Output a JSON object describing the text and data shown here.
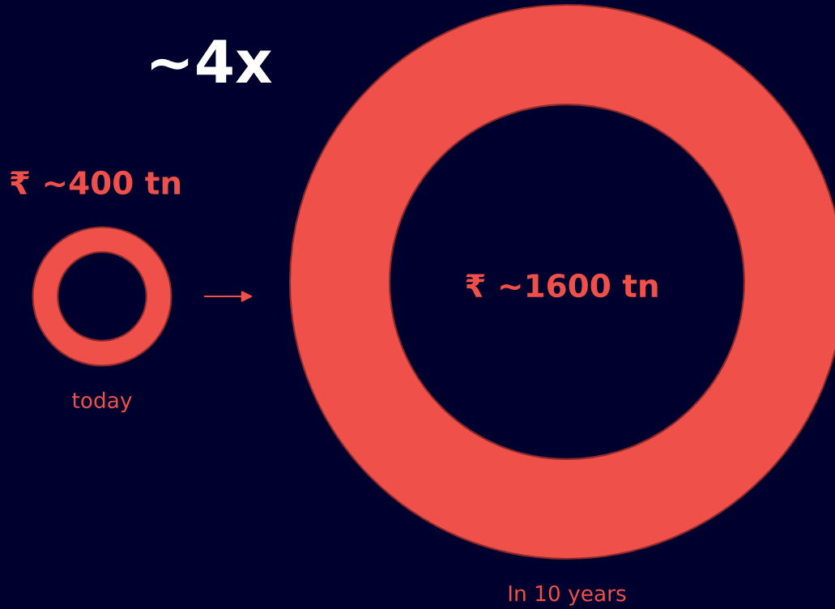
{
  "chart_data": {
    "type": "other",
    "title": "~4x",
    "categories": [
      "today",
      "In 10 years"
    ],
    "values": [
      400,
      1600
    ],
    "value_labels": [
      "₹ ~400 tn",
      "₹ ~1600 tn"
    ],
    "color": "#f0504a"
  }
}
